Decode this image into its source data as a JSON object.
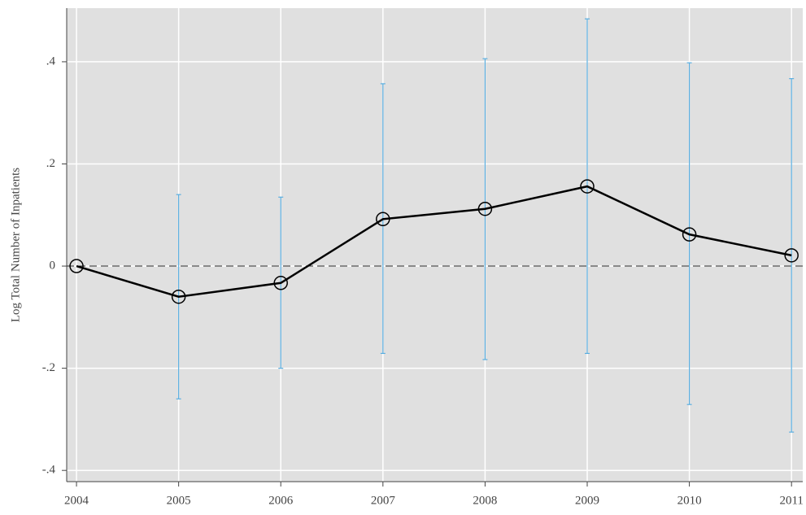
{
  "chart_data": {
    "type": "line",
    "y_label": "Log Total Number of Inpatients",
    "x": [
      2004,
      2005,
      2006,
      2007,
      2008,
      2009,
      2010,
      2011
    ],
    "xlim": [
      2003.904,
      2011.11
    ],
    "xticks": [
      2004,
      2005,
      2006,
      2007,
      2008,
      2009,
      2010,
      2011
    ],
    "ylim": [
      -0.422,
      0.505
    ],
    "yticks": [
      {
        "value": -0.4,
        "label": "-.4"
      },
      {
        "value": -0.2,
        "label": "-.2"
      },
      0,
      {
        "value": 0.2,
        "label": ".2"
      },
      {
        "value": 0.4,
        "label": ".4"
      }
    ],
    "grid": true,
    "hline": 0,
    "background": "#e0e0e0",
    "series": [
      {
        "color": "#000000",
        "errorbar_color": "#5aaee0",
        "values": [
          0,
          -0.06,
          -0.033,
          0.092,
          0.112,
          0.156,
          0.062,
          0.021
        ],
        "lower": [
          null,
          -0.26,
          -0.2,
          -0.171,
          -0.183,
          -0.171,
          -0.271,
          -0.325
        ],
        "upper": [
          null,
          0.14,
          0.135,
          0.357,
          0.406,
          0.484,
          0.398,
          0.367
        ]
      }
    ]
  }
}
